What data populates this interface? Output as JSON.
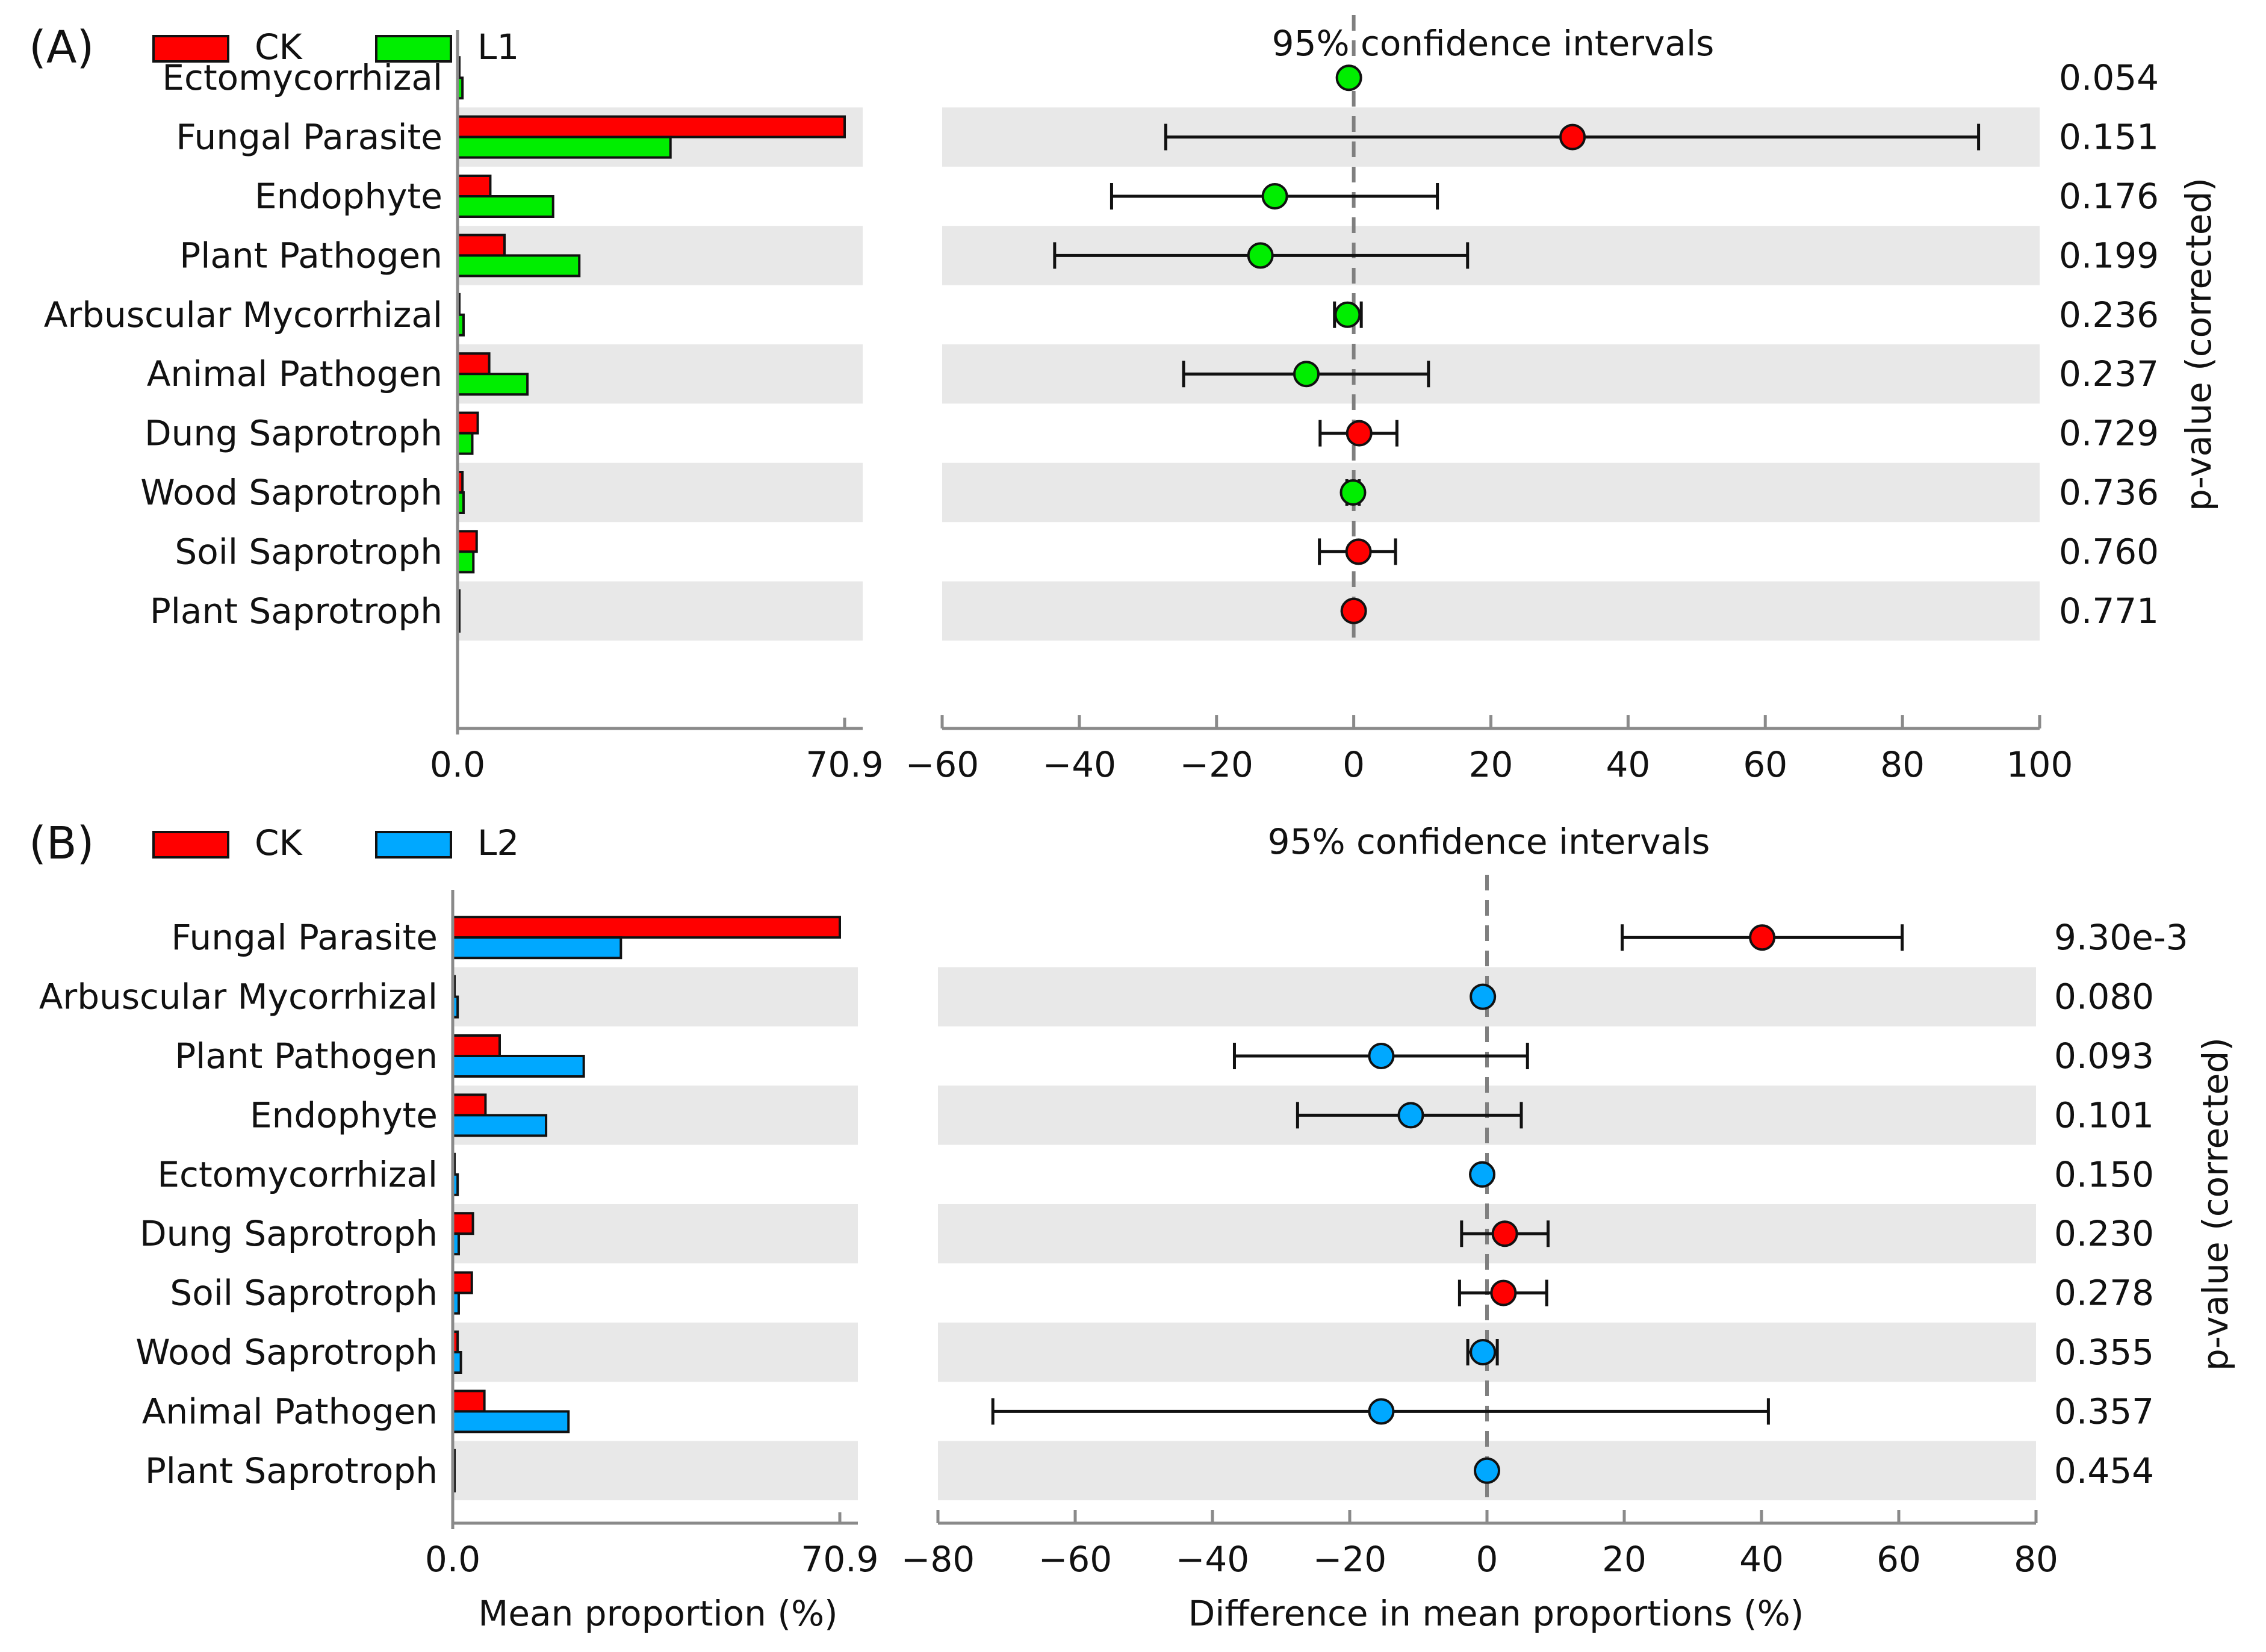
{
  "colors": {
    "CK": "#ff0000",
    "L1": "#00ee00",
    "L2": "#00a8ff"
  },
  "axis_titles": {
    "left": "Mean proportion (%)",
    "right": "Difference in mean proportions (%)"
  },
  "chart_data": [
    {
      "type": "bar",
      "panel": "(A)",
      "ci_title": "95% confidence intervals",
      "pvalue_label": "p-value (corrected)",
      "legend": [
        {
          "name": "CK",
          "color": "#ff0000"
        },
        {
          "name": "L1",
          "color": "#00ee00"
        }
      ],
      "categories": [
        "Ectomycorrhizal",
        "Fungal Parasite",
        "Endophyte",
        "Plant Pathogen",
        "Arbuscular Mycorrhizal",
        "Animal Pathogen",
        "Dung Saprotroph",
        "Wood Saprotroph",
        "Soil Saprotroph",
        "Plant Saprotroph"
      ],
      "mean_proportion": {
        "xlim": [
          0,
          70.9
        ],
        "ticks": [
          "0.0",
          "70.9"
        ],
        "series": [
          {
            "name": "CK",
            "values": [
              0.2,
              70.9,
              6.0,
              8.6,
              0.3,
              5.8,
              3.7,
              0.9,
              3.5,
              0.1
            ]
          },
          {
            "name": "L1",
            "values": [
              0.9,
              39.0,
              17.5,
              22.3,
              1.1,
              12.8,
              2.7,
              1.1,
              2.9,
              0.1
            ]
          }
        ]
      },
      "difference": {
        "xlim": [
          -60,
          100
        ],
        "ticks": [
          -60,
          -40,
          -20,
          0,
          20,
          40,
          60,
          80,
          100
        ],
        "tick_labels": [
          "−60",
          "−40",
          "−20",
          "0",
          "20",
          "40",
          "60",
          "80",
          "100"
        ],
        "points": [
          {
            "diff": -0.7,
            "low": -0.7,
            "high": -0.7,
            "group": "L1"
          },
          {
            "diff": 31.9,
            "low": -27.4,
            "high": 91.1,
            "group": "CK"
          },
          {
            "diff": -11.5,
            "low": -35.3,
            "high": 12.2,
            "group": "L1"
          },
          {
            "diff": -13.6,
            "low": -43.6,
            "high": 16.6,
            "group": "L1"
          },
          {
            "diff": -0.9,
            "low": -2.8,
            "high": 1.1,
            "group": "L1"
          },
          {
            "diff": -6.9,
            "low": -24.8,
            "high": 10.9,
            "group": "L1"
          },
          {
            "diff": 0.8,
            "low": -4.9,
            "high": 6.3,
            "group": "CK"
          },
          {
            "diff": -0.1,
            "low": -1.0,
            "high": 0.8,
            "group": "L1"
          },
          {
            "diff": 0.7,
            "low": -5.0,
            "high": 6.1,
            "group": "CK"
          },
          {
            "diff": 0.0,
            "low": 0.0,
            "high": 0.0,
            "group": "CK"
          }
        ]
      },
      "pvalues": [
        "0.054",
        "0.151",
        "0.176",
        "0.199",
        "0.236",
        "0.237",
        "0.729",
        "0.736",
        "0.760",
        "0.771"
      ]
    },
    {
      "type": "bar",
      "panel": "(B)",
      "ci_title": "95% confidence intervals",
      "pvalue_label": "p-value (corrected)",
      "legend": [
        {
          "name": "CK",
          "color": "#ff0000"
        },
        {
          "name": "L2",
          "color": "#00a8ff"
        }
      ],
      "categories": [
        "Fungal Parasite",
        "Arbuscular Mycorrhizal",
        "Plant Pathogen",
        "Endophyte",
        "Ectomycorrhizal",
        "Dung Saprotroph",
        "Soil Saprotroph",
        "Wood Saprotroph",
        "Animal Pathogen",
        "Plant Saprotroph"
      ],
      "mean_proportion": {
        "xlim": [
          0,
          70.9
        ],
        "ticks": [
          "0.0",
          "70.9"
        ],
        "series": [
          {
            "name": "CK",
            "values": [
              70.9,
              0.3,
              8.6,
              6.0,
              0.2,
              3.7,
              3.5,
              0.9,
              5.8,
              0.1
            ]
          },
          {
            "name": "L2",
            "values": [
              30.8,
              0.9,
              24.0,
              17.1,
              0.9,
              1.1,
              1.1,
              1.5,
              21.2,
              0.1
            ]
          }
        ]
      },
      "difference": {
        "xlim": [
          -80,
          80
        ],
        "ticks": [
          -80,
          -60,
          -40,
          -20,
          0,
          20,
          40,
          60,
          80
        ],
        "tick_labels": [
          "−80",
          "−60",
          "−40",
          "−20",
          "0",
          "20",
          "40",
          "60",
          "80"
        ],
        "points": [
          {
            "diff": 40.1,
            "low": 19.7,
            "high": 60.5,
            "group": "CK"
          },
          {
            "diff": -0.6,
            "low": -0.6,
            "high": -0.6,
            "group": "L2"
          },
          {
            "diff": -15.4,
            "low": -36.8,
            "high": 5.9,
            "group": "L2"
          },
          {
            "diff": -11.1,
            "low": -27.6,
            "high": 5.0,
            "group": "L2"
          },
          {
            "diff": -0.7,
            "low": -0.7,
            "high": -0.7,
            "group": "L2"
          },
          {
            "diff": 2.6,
            "low": -3.7,
            "high": 8.9,
            "group": "CK"
          },
          {
            "diff": 2.4,
            "low": -4.0,
            "high": 8.7,
            "group": "CK"
          },
          {
            "diff": -0.6,
            "low": -2.8,
            "high": 1.5,
            "group": "L2"
          },
          {
            "diff": -15.4,
            "low": -72.0,
            "high": 41.0,
            "group": "L2"
          },
          {
            "diff": 0.0,
            "low": 0.0,
            "high": 0.0,
            "group": "L2"
          }
        ]
      },
      "pvalues": [
        "9.30e-3",
        "0.080",
        "0.093",
        "0.101",
        "0.150",
        "0.230",
        "0.278",
        "0.355",
        "0.357",
        "0.454"
      ]
    }
  ]
}
